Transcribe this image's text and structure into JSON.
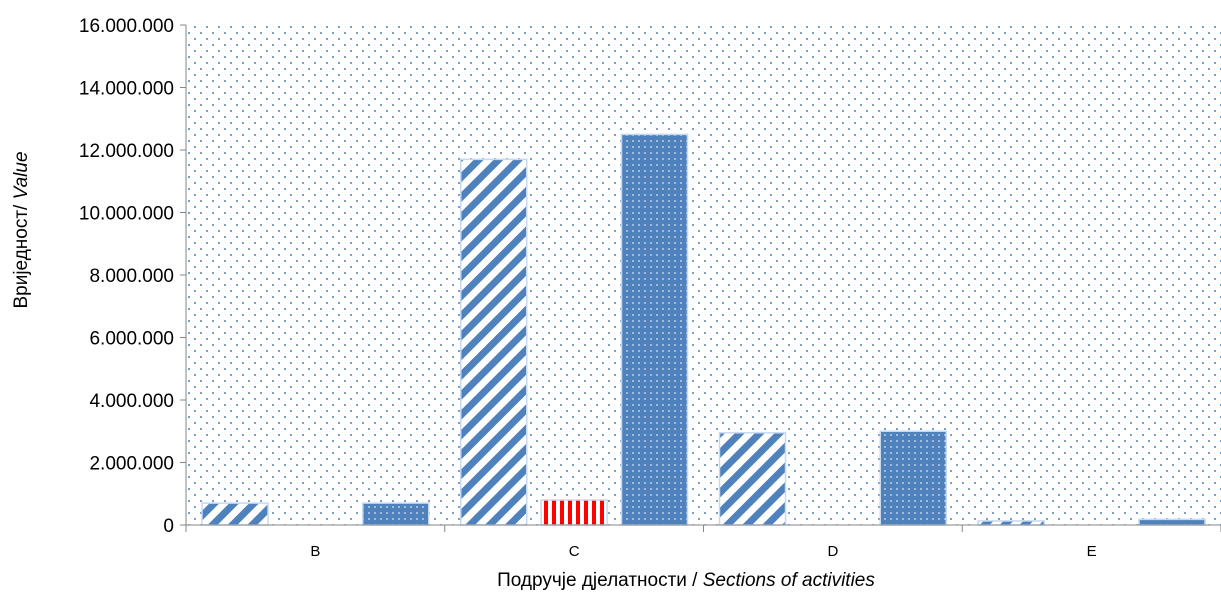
{
  "chart_data": {
    "type": "bar",
    "categories": [
      "B",
      "C",
      "D",
      "E"
    ],
    "series": [
      {
        "values": [
          700000,
          11700000,
          2950000,
          130000
        ],
        "pattern": "diagonal-stripes",
        "color": "#4f81bd"
      },
      {
        "values": [
          0,
          800000,
          0,
          0
        ],
        "pattern": "vertical-stripes",
        "color": "#ff0000"
      },
      {
        "values": [
          700000,
          12500000,
          3000000,
          180000
        ],
        "pattern": "dotted-fill",
        "color": "#4f81bd"
      }
    ],
    "ylim": [
      0,
      16000000
    ],
    "y_ticks": [
      "0",
      "2.000.000",
      "4.000.000",
      "6.000.000",
      "8.000.000",
      "10.000.000",
      "12.000.000",
      "14.000.000",
      "16.000.000"
    ],
    "xlabel": {
      "main": "Подручје дјелатности / ",
      "italic": "Sections of activities"
    },
    "ylabel": {
      "main": "Вриједност/ ",
      "italic": "Value"
    },
    "plot_background": "dotted",
    "grid": false,
    "legend": "none"
  }
}
